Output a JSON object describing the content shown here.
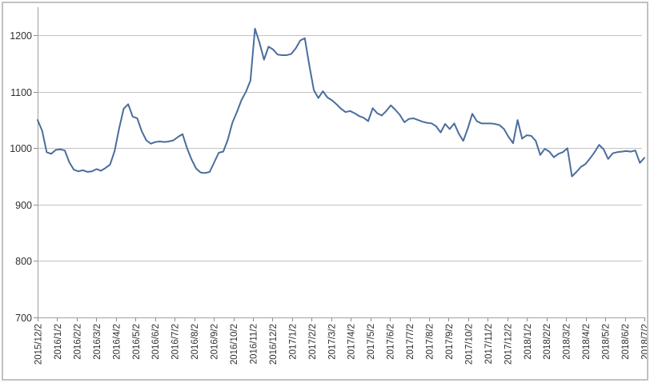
{
  "chart_data": {
    "type": "line",
    "title": "",
    "legend": "none",
    "grid": true,
    "x_tick_labels": [
      "2015/12/2",
      "2016/1/2",
      "2016/2/2",
      "2016/3/2",
      "2016/4/2",
      "2016/5/2",
      "2016/6/2",
      "2016/7/2",
      "2016/8/2",
      "2016/9/2",
      "2016/10/2",
      "2016/11/2",
      "2016/12/2",
      "2017/1/2",
      "2017/2/2",
      "2017/3/2",
      "2017/4/2",
      "2017/5/2",
      "2017/6/2",
      "2017/7/2",
      "2017/8/2",
      "2017/9/2",
      "2017/10/2",
      "2017/11/2",
      "2017/12/2",
      "2018/1/2",
      "2018/2/2",
      "2018/3/2",
      "2018/4/2",
      "2018/5/2",
      "2018/6/2",
      "2018/7/2"
    ],
    "y_axis": {
      "min": 700,
      "max": 1250,
      "tick_interval": 100,
      "tick_labels": [
        "700",
        "800",
        "900",
        "1000",
        "1100",
        "1200"
      ]
    },
    "series": [
      {
        "name": "",
        "color": "#4a6d9e",
        "values": [
          1050,
          1031,
          993,
          990,
          997,
          998,
          996,
          975,
          962,
          959,
          961,
          958,
          959,
          963,
          960,
          965,
          971,
          995,
          1035,
          1070,
          1078,
          1056,
          1053,
          1030,
          1014,
          1008,
          1011,
          1012,
          1011,
          1012,
          1014,
          1020,
          1025,
          1000,
          980,
          964,
          957,
          956,
          958,
          975,
          992,
          994,
          1015,
          1045,
          1064,
          1085,
          1100,
          1120,
          1212,
          1187,
          1157,
          1180,
          1175,
          1166,
          1165,
          1165,
          1167,
          1177,
          1191,
          1195,
          1147,
          1103,
          1089,
          1101,
          1090,
          1085,
          1078,
          1070,
          1064,
          1066,
          1062,
          1057,
          1054,
          1048,
          1071,
          1062,
          1058,
          1066,
          1076,
          1068,
          1059,
          1046,
          1052,
          1053,
          1050,
          1047,
          1045,
          1044,
          1039,
          1028,
          1043,
          1034,
          1044,
          1026,
          1013,
          1035,
          1061,
          1048,
          1044,
          1044,
          1044,
          1043,
          1041,
          1034,
          1020,
          1009,
          1050,
          1017,
          1023,
          1022,
          1013,
          988,
          999,
          994,
          984,
          990,
          993,
          1000,
          950,
          958,
          967,
          972,
          982,
          993,
          1006,
          998,
          981,
          991,
          993,
          994,
          995,
          994,
          996,
          974,
          983
        ]
      }
    ]
  },
  "colors": {
    "line": "#4a6d9e",
    "gridline": "#c3c3c3",
    "axis": "#a0a0a0",
    "tick": "#8f8f8f",
    "text": "#303030",
    "border": "#c2c2c2",
    "background": "#ffffff"
  }
}
